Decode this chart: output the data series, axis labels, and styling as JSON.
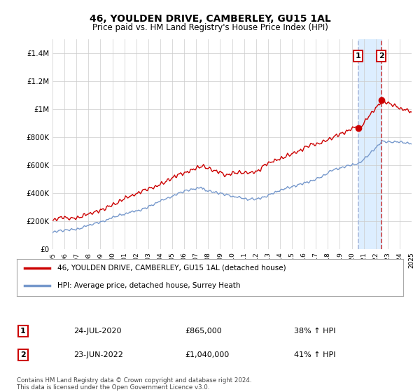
{
  "title": "46, YOULDEN DRIVE, CAMBERLEY, GU15 1AL",
  "subtitle": "Price paid vs. HM Land Registry's House Price Index (HPI)",
  "legend_line1": "46, YOULDEN DRIVE, CAMBERLEY, GU15 1AL (detached house)",
  "legend_line2": "HPI: Average price, detached house, Surrey Heath",
  "footer": "Contains HM Land Registry data © Crown copyright and database right 2024.\nThis data is licensed under the Open Government Licence v3.0.",
  "annotation1_date": "24-JUL-2020",
  "annotation1_price": "£865,000",
  "annotation1_hpi": "38% ↑ HPI",
  "annotation2_date": "23-JUN-2022",
  "annotation2_price": "£1,040,000",
  "annotation2_hpi": "41% ↑ HPI",
  "red_color": "#cc0000",
  "blue_color": "#7799cc",
  "vline1_color": "#aabbdd",
  "vline2_color": "#cc4444",
  "shade_color": "#ddeeff",
  "grid_color": "#cccccc",
  "background_color": "#ffffff",
  "ylim": [
    0,
    1500000
  ],
  "yticks": [
    0,
    200000,
    400000,
    600000,
    800000,
    1000000,
    1200000,
    1400000
  ],
  "ytick_labels": [
    "£0",
    "£200K",
    "£400K",
    "£600K",
    "£800K",
    "£1M",
    "£1.2M",
    "£1.4M"
  ],
  "t1_year": 2020.542,
  "t2_year": 2022.458,
  "val1_red": 865000,
  "val2_red": 1040000
}
